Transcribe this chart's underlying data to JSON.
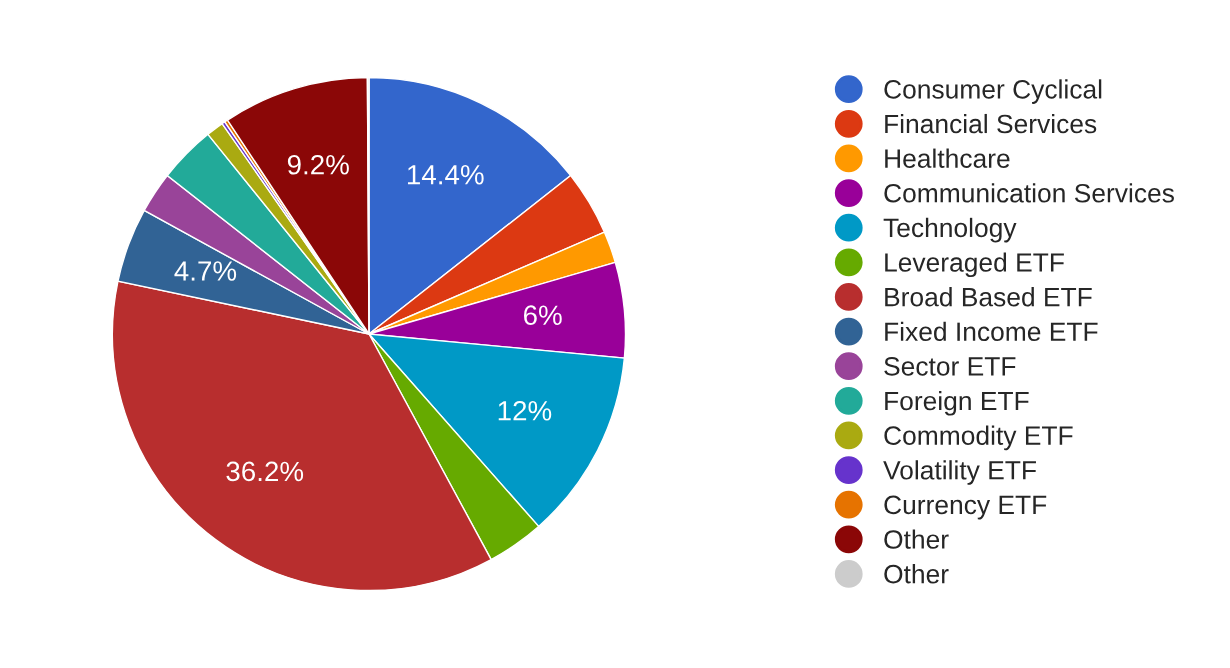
{
  "chart_data": {
    "type": "pie",
    "categories": [
      "Consumer Cyclical",
      "Financial Services",
      "Healthcare",
      "Communication Services",
      "Technology",
      "Leveraged ETF",
      "Broad Based ETF",
      "Fixed Income ETF",
      "Sector ETF",
      "Foreign ETF",
      "Commodity ETF",
      "Volatility ETF",
      "Currency ETF",
      "Other",
      "Other"
    ],
    "values": [
      14.4,
      4.1,
      2,
      6,
      12,
      3.6,
      36.2,
      4.7,
      2.6,
      3.6,
      1.1,
      0.2,
      0.2,
      9.2,
      0.1
    ],
    "value_labels": [
      "14.4%",
      null,
      null,
      "6%",
      "12%",
      null,
      "36.2%",
      "4.7%",
      null,
      null,
      null,
      null,
      null,
      "9.2%",
      null
    ],
    "colors": [
      "#3366cc",
      "#dc3912",
      "#ff9900",
      "#990099",
      "#0099c6",
      "#66aa00",
      "#b82e2e",
      "#316395",
      "#994499",
      "#22aa99",
      "#aaaa11",
      "#6633cc",
      "#e67300",
      "#8b0707",
      "#cccccc"
    ],
    "legend": "right"
  }
}
